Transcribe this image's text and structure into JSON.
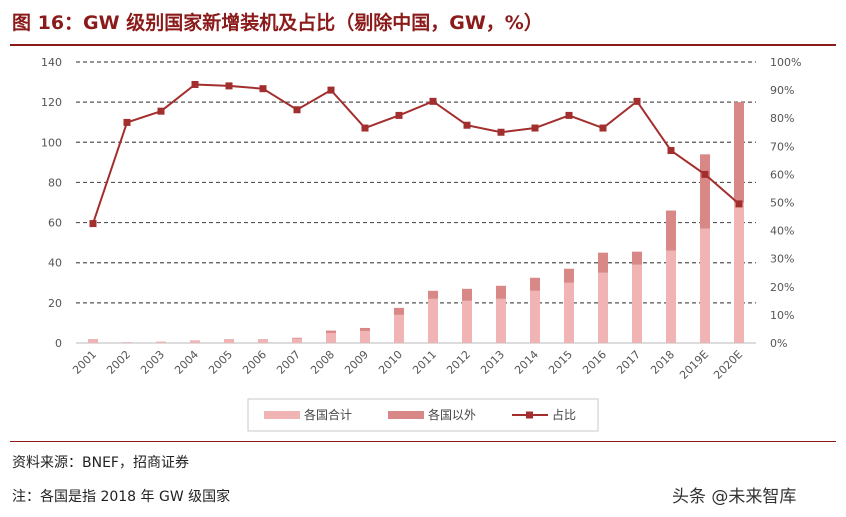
{
  "title": "图 16：GW 级别国家新增装机及占比（剔除中国，GW，%）",
  "source": "资料来源：BNEF，招商证券",
  "note": "注：各国是指 2018 年 GW 级国家",
  "watermark": "头条 @未来智库",
  "colors": {
    "title": "#8b1a1a",
    "bar_total": "#f0b4b4",
    "bar_outside": "#d98888",
    "line": "#a32e2e"
  },
  "chart_data": {
    "type": "bar",
    "categories": [
      "2001",
      "2002",
      "2003",
      "2004",
      "2005",
      "2006",
      "2007",
      "2008",
      "2009",
      "2010",
      "2011",
      "2012",
      "2013",
      "2014",
      "2015",
      "2016",
      "2017",
      "2018",
      "2019E",
      "2020E"
    ],
    "series": [
      {
        "name": "各国合计",
        "type": "bar",
        "axis": "left",
        "values": [
          1.5,
          0.3,
          0.6,
          1.0,
          1.5,
          1.7,
          2.2,
          5.0,
          6.0,
          14.0,
          22.0,
          21.0,
          22.0,
          26.0,
          30.0,
          35.0,
          39.0,
          46.0,
          57.0,
          70.0
        ]
      },
      {
        "name": "各国以外",
        "type": "bar",
        "axis": "left",
        "values": [
          0.3,
          0.1,
          0.1,
          0.2,
          0.3,
          0.2,
          0.4,
          1.2,
          1.5,
          3.5,
          4.0,
          6.0,
          6.5,
          6.5,
          7.0,
          10.0,
          6.5,
          20.0,
          37.0,
          50.0
        ]
      },
      {
        "name": "占比",
        "type": "line",
        "axis": "right",
        "values": [
          42.5,
          78.5,
          82.5,
          92.0,
          91.5,
          90.5,
          83.0,
          90.0,
          76.5,
          81.0,
          86.0,
          77.5,
          75.0,
          76.5,
          81.0,
          76.5,
          86.0,
          68.5,
          60.0,
          49.5
        ]
      }
    ],
    "y_left": {
      "min": 0,
      "max": 140,
      "ticks": [
        "0",
        "20",
        "40",
        "60",
        "80",
        "100",
        "120",
        "140"
      ]
    },
    "y_right": {
      "min": 0,
      "max": 100,
      "ticks": [
        "0%",
        "10%",
        "20%",
        "30%",
        "40%",
        "50%",
        "60%",
        "70%",
        "80%",
        "90%",
        "100%"
      ]
    },
    "grid": "horizontal dashed",
    "legend": "bottom"
  }
}
